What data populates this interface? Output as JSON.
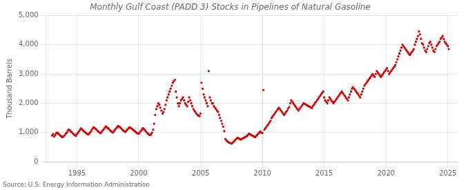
{
  "chart_data": {
    "type": "scatter",
    "title": "Monthly Gulf Coast (PADD 3) Stocks in Pipelines of Natural Gasoline",
    "ylabel": "Thousand Barrels",
    "annotations": [
      "Source: U.S. Energy Information Administration"
    ],
    "color": "#CC0000",
    "marker": "square",
    "grid": true,
    "xlim": [
      1992.5,
      2025.8
    ],
    "xticks": [
      1995,
      2000,
      2005,
      2010,
      2015,
      2020,
      2025
    ],
    "ylim": [
      0,
      5000
    ],
    "yticks": [
      0,
      {
        "value": 1000,
        "label": "1,000"
      },
      {
        "value": 2000,
        "label": "2,000"
      },
      {
        "value": 3000,
        "label": "3,000"
      },
      {
        "value": 4000,
        "label": "4,000"
      },
      {
        "value": 5000,
        "label": "5,000"
      }
    ],
    "x": [
      1993.0,
      1993.08,
      1993.17,
      1993.25,
      1993.33,
      1993.42,
      1993.5,
      1993.58,
      1993.67,
      1993.75,
      1993.83,
      1993.92,
      1994.0,
      1994.08,
      1994.17,
      1994.25,
      1994.33,
      1994.42,
      1994.5,
      1994.58,
      1994.67,
      1994.75,
      1994.83,
      1994.92,
      1995.0,
      1995.08,
      1995.17,
      1995.25,
      1995.33,
      1995.42,
      1995.5,
      1995.58,
      1995.67,
      1995.75,
      1995.83,
      1995.92,
      1996.0,
      1996.08,
      1996.17,
      1996.25,
      1996.33,
      1996.42,
      1996.5,
      1996.58,
      1996.67,
      1996.75,
      1996.83,
      1996.92,
      1997.0,
      1997.08,
      1997.17,
      1997.25,
      1997.33,
      1997.42,
      1997.5,
      1997.58,
      1997.67,
      1997.75,
      1997.83,
      1997.92,
      1998.0,
      1998.08,
      1998.17,
      1998.25,
      1998.33,
      1998.42,
      1998.5,
      1998.58,
      1998.67,
      1998.75,
      1998.83,
      1998.92,
      1999.0,
      1999.08,
      1999.17,
      1999.25,
      1999.33,
      1999.42,
      1999.5,
      1999.58,
      1999.67,
      1999.75,
      1999.83,
      1999.92,
      2000.0,
      2000.08,
      2000.17,
      2000.25,
      2000.33,
      2000.42,
      2000.5,
      2000.58,
      2000.67,
      2000.75,
      2000.83,
      2000.92,
      2001.0,
      2001.08,
      2001.17,
      2001.25,
      2001.33,
      2001.42,
      2001.5,
      2001.58,
      2001.67,
      2001.75,
      2001.83,
      2001.92,
      2002.0,
      2002.08,
      2002.17,
      2002.25,
      2002.33,
      2002.42,
      2002.5,
      2002.58,
      2002.67,
      2002.75,
      2002.83,
      2002.92,
      2003.0,
      2003.08,
      2003.17,
      2003.25,
      2003.33,
      2003.42,
      2003.5,
      2003.58,
      2003.67,
      2003.75,
      2003.83,
      2003.92,
      2004.0,
      2004.08,
      2004.17,
      2004.25,
      2004.33,
      2004.42,
      2004.5,
      2004.58,
      2004.67,
      2004.75,
      2004.83,
      2004.92,
      2005.0,
      2005.08,
      2005.17,
      2005.25,
      2005.33,
      2005.42,
      2005.5,
      2005.58,
      2005.67,
      2005.75,
      2005.83,
      2005.92,
      2006.0,
      2006.08,
      2006.17,
      2006.25,
      2006.33,
      2006.42,
      2006.5,
      2006.58,
      2006.67,
      2006.75,
      2006.83,
      2006.92,
      2007.0,
      2007.08,
      2007.17,
      2007.25,
      2007.33,
      2007.42,
      2007.5,
      2007.58,
      2007.67,
      2007.75,
      2007.83,
      2007.92,
      2008.0,
      2008.08,
      2008.17,
      2008.25,
      2008.33,
      2008.42,
      2008.5,
      2008.58,
      2008.67,
      2008.75,
      2008.83,
      2008.92,
      2009.0,
      2009.08,
      2009.17,
      2009.25,
      2009.33,
      2009.42,
      2009.5,
      2009.58,
      2009.67,
      2009.75,
      2009.83,
      2009.92,
      2010.0,
      2010.08,
      2010.17,
      2010.25,
      2010.33,
      2010.42,
      2010.5,
      2010.58,
      2010.67,
      2010.75,
      2010.83,
      2010.92,
      2011.0,
      2011.08,
      2011.17,
      2011.25,
      2011.33,
      2011.42,
      2011.5,
      2011.58,
      2011.67,
      2011.75,
      2011.83,
      2011.92,
      2012.0,
      2012.08,
      2012.17,
      2012.25,
      2012.33,
      2012.42,
      2012.5,
      2012.58,
      2012.67,
      2012.75,
      2012.83,
      2012.92,
      2013.0,
      2013.08,
      2013.17,
      2013.25,
      2013.33,
      2013.42,
      2013.5,
      2013.58,
      2013.67,
      2013.75,
      2013.83,
      2013.92,
      2014.0,
      2014.08,
      2014.17,
      2014.25,
      2014.33,
      2014.42,
      2014.5,
      2014.58,
      2014.67,
      2014.75,
      2014.83,
      2014.92,
      2015.0,
      2015.08,
      2015.17,
      2015.25,
      2015.33,
      2015.42,
      2015.5,
      2015.58,
      2015.67,
      2015.75,
      2015.83,
      2015.92,
      2016.0,
      2016.08,
      2016.17,
      2016.25,
      2016.33,
      2016.42,
      2016.5,
      2016.58,
      2016.67,
      2016.75,
      2016.83,
      2016.92,
      2017.0,
      2017.08,
      2017.17,
      2017.25,
      2017.33,
      2017.42,
      2017.5,
      2017.58,
      2017.67,
      2017.75,
      2017.83,
      2017.92,
      2018.0,
      2018.08,
      2018.17,
      2018.25,
      2018.33,
      2018.42,
      2018.5,
      2018.58,
      2018.67,
      2018.75,
      2018.83,
      2018.92,
      2019.0,
      2019.08,
      2019.17,
      2019.25,
      2019.33,
      2019.42,
      2019.5,
      2019.58,
      2019.67,
      2019.75,
      2019.83,
      2019.92,
      2020.0,
      2020.08,
      2020.17,
      2020.25,
      2020.33,
      2020.42,
      2020.5,
      2020.58,
      2020.67,
      2020.75,
      2020.83,
      2020.92,
      2021.0,
      2021.08,
      2021.17,
      2021.25,
      2021.33,
      2021.42,
      2021.5,
      2021.58,
      2021.67,
      2021.75,
      2021.83,
      2021.92,
      2022.0,
      2022.08,
      2022.17,
      2022.25,
      2022.33,
      2022.42,
      2022.5,
      2022.58,
      2022.67,
      2022.75,
      2022.83,
      2022.92,
      2023.0,
      2023.08,
      2023.17,
      2023.25,
      2023.33,
      2023.42,
      2023.5,
      2023.58,
      2023.67,
      2023.75,
      2023.83,
      2023.92,
      2024.0,
      2024.08,
      2024.17,
      2024.25,
      2024.33,
      2024.42,
      2024.5,
      2024.58,
      2024.67,
      2024.75,
      2024.83,
      2024.92,
      2025.0,
      2025.08
    ],
    "values": [
      900,
      950,
      870,
      920,
      980,
      1000,
      960,
      930,
      890,
      860,
      840,
      870,
      900,
      950,
      990,
      1050,
      1100,
      1080,
      1040,
      1010,
      970,
      940,
      910,
      890,
      940,
      990,
      1040,
      1090,
      1140,
      1110,
      1070,
      1040,
      1010,
      980,
      950,
      930,
      970,
      1010,
      1060,
      1120,
      1180,
      1160,
      1130,
      1100,
      1060,
      1030,
      1000,
      980,
      1020,
      1070,
      1110,
      1160,
      1210,
      1180,
      1150,
      1120,
      1080,
      1050,
      1020,
      1000,
      1050,
      1100,
      1140,
      1180,
      1220,
      1200,
      1170,
      1140,
      1100,
      1070,
      1040,
      1020,
      1060,
      1100,
      1140,
      1180,
      1160,
      1140,
      1110,
      1080,
      1050,
      1020,
      990,
      970,
      960,
      1000,
      1050,
      1100,
      1150,
      1120,
      1080,
      1040,
      1000,
      960,
      930,
      910,
      940,
      1000,
      1100,
      1300,
      1600,
      1800,
      1900,
      2000,
      1950,
      1850,
      1750,
      1650,
      1700,
      1800,
      1950,
      2100,
      2200,
      2300,
      2400,
      2500,
      2600,
      2700,
      2750,
      2800,
      2400,
      2200,
      2000,
      1900,
      2000,
      2100,
      2150,
      2200,
      2100,
      2000,
      1950,
      1900,
      2050,
      2200,
      2100,
      2000,
      1900,
      1800,
      1750,
      1700,
      1650,
      1600,
      1580,
      1560,
      1650,
      2700,
      2500,
      2300,
      2200,
      2100,
      2000,
      1900,
      3100,
      2200,
      2100,
      2000,
      2000,
      1900,
      1850,
      1800,
      1750,
      1700,
      1600,
      1500,
      1400,
      1300,
      1200,
      1050,
      780,
      740,
      700,
      670,
      650,
      640,
      620,
      640,
      680,
      720,
      760,
      800,
      820,
      800,
      780,
      760,
      780,
      800,
      820,
      840,
      860,
      880,
      920,
      960,
      940,
      920,
      900,
      880,
      860,
      840,
      880,
      920,
      960,
      1000,
      1040,
      1000,
      980,
      2450,
      1100,
      1150,
      1200,
      1250,
      1300,
      1350,
      1400,
      1500,
      1550,
      1600,
      1650,
      1700,
      1750,
      1800,
      1850,
      1800,
      1750,
      1700,
      1650,
      1600,
      1650,
      1700,
      1750,
      1820,
      1870,
      2000,
      2100,
      2050,
      2000,
      1950,
      1900,
      1850,
      1800,
      1750,
      1800,
      1850,
      1900,
      1950,
      2000,
      1980,
      1960,
      1940,
      1920,
      1900,
      1880,
      1860,
      1840,
      1900,
      1950,
      2000,
      2050,
      2100,
      2150,
      2200,
      2250,
      2300,
      2350,
      2400,
      2200,
      2100,
      2050,
      2000,
      2100,
      2200,
      2150,
      2100,
      2050,
      2000,
      2050,
      2100,
      2150,
      2200,
      2250,
      2300,
      2350,
      2400,
      2350,
      2300,
      2250,
      2200,
      2150,
      2100,
      2200,
      2300,
      2400,
      2500,
      2550,
      2500,
      2450,
      2400,
      2350,
      2300,
      2250,
      2200,
      2300,
      2400,
      2500,
      2600,
      2650,
      2700,
      2750,
      2800,
      2850,
      2900,
      2950,
      3000,
      2950,
      2900,
      3000,
      3100,
      3050,
      3000,
      2950,
      2900,
      2950,
      3000,
      3050,
      3100,
      3150,
      3200,
      3100,
      3000,
      3050,
      3100,
      3150,
      3200,
      3250,
      3300,
      3400,
      3500,
      3600,
      3700,
      3800,
      3900,
      4000,
      3950,
      3900,
      3850,
      3800,
      3750,
      3700,
      3650,
      3700,
      3750,
      3800,
      3850,
      4000,
      4100,
      4200,
      4300,
      4450,
      4350,
      4200,
      4050,
      4000,
      3900,
      3800,
      3750,
      3850,
      3950,
      4050,
      4100,
      4000,
      3900,
      3800,
      3750,
      3850,
      3950,
      4000,
      4050,
      4100,
      4200,
      4250,
      4300,
      4200,
      4100,
      4050,
      4000,
      3950,
      3850
    ]
  }
}
